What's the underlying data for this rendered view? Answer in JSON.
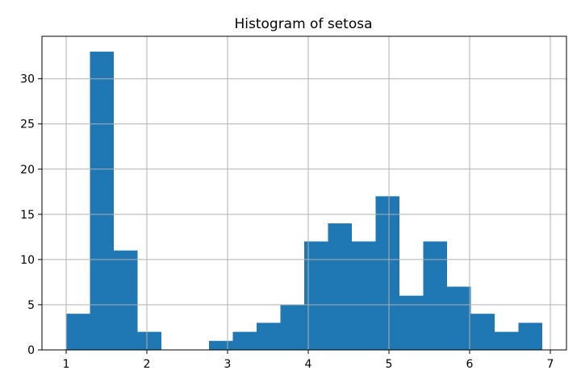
{
  "chart_data": {
    "type": "bar",
    "title": "Histogram of setosa",
    "xlabel": "",
    "ylabel": "",
    "bins": [
      {
        "x0": 1.0,
        "x1": 1.295,
        "value": 4
      },
      {
        "x0": 1.295,
        "x1": 1.59,
        "value": 33
      },
      {
        "x0": 1.59,
        "x1": 1.885,
        "value": 11
      },
      {
        "x0": 1.885,
        "x1": 2.18,
        "value": 2
      },
      {
        "x0": 2.18,
        "x1": 2.475,
        "value": 0
      },
      {
        "x0": 2.475,
        "x1": 2.77,
        "value": 0
      },
      {
        "x0": 2.77,
        "x1": 3.065,
        "value": 1
      },
      {
        "x0": 3.065,
        "x1": 3.36,
        "value": 2
      },
      {
        "x0": 3.36,
        "x1": 3.655,
        "value": 3
      },
      {
        "x0": 3.655,
        "x1": 3.95,
        "value": 5
      },
      {
        "x0": 3.95,
        "x1": 4.245,
        "value": 12
      },
      {
        "x0": 4.245,
        "x1": 4.54,
        "value": 14
      },
      {
        "x0": 4.54,
        "x1": 4.835,
        "value": 12
      },
      {
        "x0": 4.835,
        "x1": 5.13,
        "value": 17
      },
      {
        "x0": 5.13,
        "x1": 5.425,
        "value": 6
      },
      {
        "x0": 5.425,
        "x1": 5.72,
        "value": 12
      },
      {
        "x0": 5.72,
        "x1": 6.015,
        "value": 7
      },
      {
        "x0": 6.015,
        "x1": 6.31,
        "value": 4
      },
      {
        "x0": 6.31,
        "x1": 6.605,
        "value": 2
      },
      {
        "x0": 6.605,
        "x1": 6.9,
        "value": 3
      }
    ],
    "xlim": [
      0.7,
      7.2
    ],
    "ylim": [
      0,
      34.7
    ],
    "xticks": [
      "1",
      "2",
      "3",
      "4",
      "5",
      "6",
      "7"
    ],
    "yticks": [
      "0",
      "5",
      "10",
      "15",
      "20",
      "25",
      "30"
    ],
    "grid": true,
    "bar_color": "#1f77b4",
    "grid_color": "#b0b0b0"
  }
}
